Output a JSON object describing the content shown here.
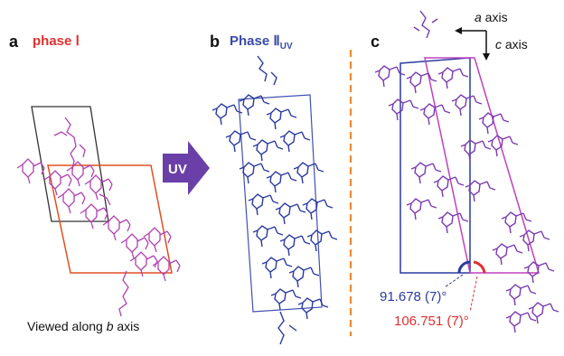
{
  "panels": {
    "a": {
      "letter": "a",
      "title": "phase Ⅰ",
      "caption_pre": "Viewed along ",
      "caption_axis": "b",
      "caption_post": " axis",
      "colors": {
        "title": "#e03030",
        "cell_top": "#333333",
        "cell_bottom": "#e05020",
        "molecule": "#b040b0"
      }
    },
    "arrow": {
      "label": "UV",
      "color": "#6a3fa8"
    },
    "b": {
      "letter": "b",
      "title_main": "Phase Ⅱ",
      "title_sub": "UV",
      "colors": {
        "title": "#3a4aa8",
        "cell": "#4050b0",
        "molecule": "#2a3aa0"
      }
    },
    "divider": {
      "color": "#f08a30"
    },
    "c": {
      "letter": "c",
      "axis_a_italic": "a",
      "axis_a_rest": " axis",
      "axis_c_italic": "c",
      "axis_c_rest": " axis",
      "angle_blue": "91.678 (7)°",
      "angle_red": "106.751 (7)°",
      "colors": {
        "blue": "#2a3aa0",
        "red": "#e03030",
        "magenta": "#c040c0",
        "molecule": "#7a3ab0"
      }
    }
  }
}
